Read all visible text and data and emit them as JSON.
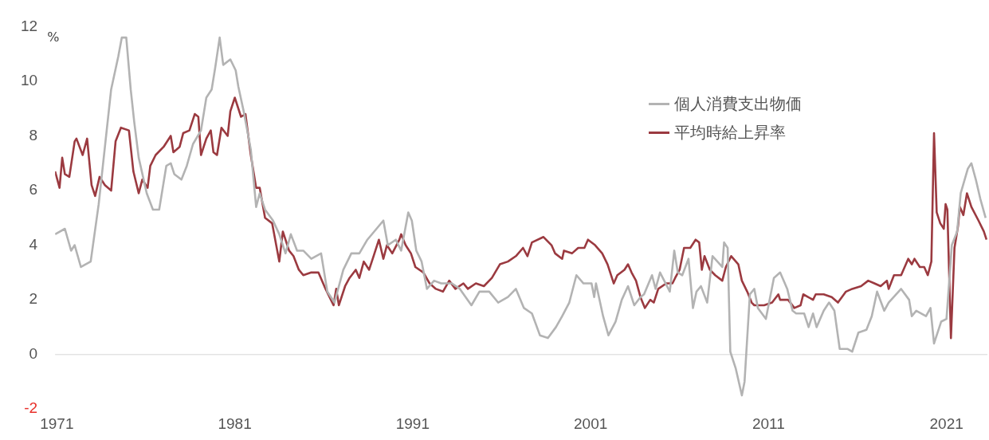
{
  "chart_data": {
    "type": "line",
    "ylabel": "%",
    "xlim": [
      1970.9,
      2023.3
    ],
    "xticks": [
      1971,
      1981,
      1991,
      2001,
      2011,
      2021
    ],
    "ylim": [
      -2,
      12
    ],
    "yticks": [
      -2,
      0,
      2,
      4,
      6,
      8,
      10,
      12
    ],
    "legend": "top right",
    "marker": "none",
    "line_style": "solid",
    "ref_lines": [
      {
        "axis": "y",
        "value": 0,
        "color": "#e3e3e3"
      }
    ],
    "series": [
      {
        "name": "個人消費支出物価",
        "color": "#b3b3b3",
        "x": [
          1970.9,
          1971.45,
          1971.8,
          1972.0,
          1972.35,
          1972.9,
          1973.35,
          1974.05,
          1974.45,
          1974.65,
          1974.9,
          1975.15,
          1975.35,
          1975.6,
          1976.05,
          1976.4,
          1976.75,
          1977.15,
          1977.4,
          1977.6,
          1978.0,
          1978.3,
          1978.65,
          1979.1,
          1979.4,
          1979.7,
          1979.9,
          1980.15,
          1980.35,
          1980.75,
          1981.05,
          1981.2,
          1981.5,
          1981.9,
          1982.2,
          1982.4,
          1982.7,
          1983.15,
          1983.5,
          1983.85,
          1984.15,
          1984.5,
          1984.85,
          1985.3,
          1985.85,
          1986.2,
          1986.6,
          1987.1,
          1987.55,
          1988.0,
          1988.45,
          1989.35,
          1989.6,
          1990.05,
          1990.35,
          1990.75,
          1990.95,
          1991.2,
          1991.5,
          1991.8,
          1992.2,
          1992.6,
          1993.2,
          1993.65,
          1994.3,
          1994.75,
          1995.3,
          1995.8,
          1996.35,
          1996.8,
          1997.25,
          1997.7,
          1998.15,
          1998.6,
          1999.05,
          1999.4,
          1999.8,
          2000.2,
          2000.6,
          2001.05,
          2001.2,
          2001.3,
          2001.7,
          2002.0,
          2002.4,
          2002.75,
          2003.1,
          2003.45,
          2003.8,
          2004.0,
          2004.45,
          2004.65,
          2004.9,
          2005.45,
          2005.7,
          2005.9,
          2006.15,
          2006.5,
          2006.75,
          2006.95,
          2007.2,
          2007.55,
          2007.85,
          2008.4,
          2008.5,
          2008.7,
          2008.85,
          2009.15,
          2009.5,
          2009.65,
          2009.95,
          2010.2,
          2010.4,
          2010.85,
          2011.3,
          2011.65,
          2012.05,
          2012.35,
          2012.55,
          2013.0,
          2013.25,
          2013.5,
          2013.7,
          2014.1,
          2014.4,
          2014.7,
          2015.0,
          2015.45,
          2015.7,
          2016.05,
          2016.5,
          2016.8,
          2017.1,
          2017.5,
          2017.75,
          2018.45,
          2018.9,
          2019.05,
          2019.3,
          2019.85,
          2020.1,
          2020.3,
          2020.7,
          2021.0,
          2021.3,
          2021.6,
          2021.8,
          2022.2,
          2022.4,
          2022.65,
          2022.9,
          2023.2
        ],
        "values": [
          4.4,
          4.6,
          3.8,
          4.0,
          3.2,
          3.4,
          5.5,
          9.7,
          10.9,
          11.6,
          11.6,
          9.7,
          8.5,
          7.2,
          5.9,
          5.3,
          5.3,
          6.9,
          7.0,
          6.6,
          6.4,
          6.9,
          7.7,
          8.2,
          9.4,
          9.7,
          10.5,
          11.6,
          10.6,
          10.8,
          10.4,
          9.8,
          8.9,
          7.5,
          5.4,
          5.9,
          5.3,
          4.9,
          4.4,
          3.7,
          4.4,
          3.8,
          3.8,
          3.5,
          3.7,
          2.3,
          1.9,
          3.1,
          3.7,
          3.7,
          4.2,
          4.9,
          4.0,
          4.2,
          3.8,
          5.2,
          4.9,
          3.8,
          3.4,
          2.4,
          2.7,
          2.6,
          2.6,
          2.4,
          1.8,
          2.3,
          2.3,
          1.9,
          2.1,
          2.4,
          1.7,
          1.5,
          0.7,
          0.6,
          1.0,
          1.4,
          1.9,
          2.9,
          2.6,
          2.6,
          2.1,
          2.6,
          1.4,
          0.7,
          1.2,
          2.0,
          2.5,
          1.8,
          2.1,
          2.2,
          2.9,
          2.4,
          3.0,
          2.3,
          3.8,
          3.0,
          2.9,
          3.5,
          1.7,
          2.3,
          2.5,
          1.9,
          3.6,
          3.2,
          4.1,
          3.9,
          0.1,
          -0.5,
          -1.5,
          -1.0,
          2.2,
          2.4,
          1.7,
          1.3,
          2.8,
          3.0,
          2.4,
          1.6,
          1.5,
          1.5,
          1.0,
          1.5,
          1.0,
          1.6,
          1.9,
          1.6,
          0.2,
          0.2,
          0.1,
          0.8,
          0.9,
          1.4,
          2.3,
          1.6,
          1.9,
          2.4,
          2.0,
          1.4,
          1.6,
          1.4,
          1.7,
          0.4,
          1.2,
          1.3,
          4.0,
          4.5,
          5.9,
          6.8,
          7.0,
          6.4,
          5.7,
          5.0
        ]
      },
      {
        "name": "平均時給上昇率",
        "color": "#9b3a40",
        "x": [
          1970.9,
          1971.15,
          1971.3,
          1971.45,
          1971.7,
          1972.0,
          1972.1,
          1972.45,
          1972.7,
          1972.95,
          1973.15,
          1973.4,
          1973.7,
          1974.05,
          1974.3,
          1974.6,
          1975.05,
          1975.3,
          1975.6,
          1975.8,
          1976.1,
          1976.25,
          1976.55,
          1977.0,
          1977.4,
          1977.55,
          1977.9,
          1978.1,
          1978.45,
          1978.75,
          1978.95,
          1979.1,
          1979.4,
          1979.65,
          1979.8,
          1980.0,
          1980.25,
          1980.6,
          1980.75,
          1981.0,
          1981.35,
          1981.6,
          1981.9,
          1982.2,
          1982.4,
          1982.7,
          1983.1,
          1983.5,
          1983.7,
          1984.05,
          1984.3,
          1984.6,
          1984.85,
          1985.3,
          1985.7,
          1986.1,
          1986.55,
          1986.7,
          1986.85,
          1987.2,
          1987.45,
          1987.8,
          1988.0,
          1988.25,
          1988.55,
          1988.8,
          1989.1,
          1989.35,
          1989.55,
          1989.85,
          1990.25,
          1990.35,
          1990.6,
          1990.9,
          1991.15,
          1991.6,
          1991.95,
          1992.3,
          1992.7,
          1993.05,
          1993.4,
          1993.85,
          1994.1,
          1994.55,
          1995.0,
          1995.45,
          1995.9,
          1996.35,
          1996.8,
          1997.2,
          1997.45,
          1997.7,
          1998.35,
          1998.8,
          1999.0,
          1999.4,
          1999.5,
          1999.95,
          2000.3,
          2000.65,
          2000.85,
          2001.25,
          2001.65,
          2001.95,
          2002.3,
          2002.5,
          2002.9,
          2003.1,
          2003.3,
          2003.55,
          2003.8,
          2004.05,
          2004.35,
          2004.55,
          2004.8,
          2005.25,
          2005.6,
          2005.75,
          2006.0,
          2006.25,
          2006.6,
          2006.9,
          2007.1,
          2007.25,
          2007.4,
          2007.7,
          2008.0,
          2008.4,
          2008.6,
          2008.9,
          2009.3,
          2009.5,
          2009.8,
          2010.05,
          2010.2,
          2010.75,
          2011.2,
          2011.55,
          2011.65,
          2012.1,
          2012.45,
          2012.8,
          2012.95,
          2013.5,
          2013.65,
          2014.1,
          2014.55,
          2014.9,
          2015.35,
          2015.7,
          2016.2,
          2016.6,
          2016.95,
          2017.3,
          2017.65,
          2017.75,
          2018.05,
          2018.45,
          2018.85,
          2019.05,
          2019.2,
          2019.5,
          2019.75,
          2019.95,
          2020.15,
          2020.3,
          2020.45,
          2020.65,
          2020.85,
          2020.95,
          2021.05,
          2021.25,
          2021.45,
          2021.65,
          2021.75,
          2021.95,
          2022.15,
          2022.4,
          2022.8,
          2023.1,
          2023.25
        ],
        "values": [
          6.7,
          6.1,
          7.2,
          6.6,
          6.5,
          7.8,
          7.9,
          7.3,
          7.9,
          6.2,
          5.8,
          6.5,
          6.2,
          6.0,
          7.8,
          8.3,
          8.2,
          6.7,
          5.9,
          6.4,
          6.1,
          6.9,
          7.3,
          7.6,
          8.0,
          7.4,
          7.6,
          8.1,
          8.2,
          8.8,
          8.7,
          7.3,
          7.9,
          8.2,
          7.4,
          7.3,
          8.3,
          8.0,
          8.9,
          9.4,
          8.7,
          8.8,
          7.3,
          6.1,
          6.1,
          5.0,
          4.8,
          3.4,
          4.5,
          3.8,
          3.6,
          3.1,
          2.9,
          3.0,
          3.0,
          2.4,
          1.8,
          2.4,
          1.8,
          2.5,
          2.8,
          3.1,
          2.8,
          3.4,
          3.1,
          3.6,
          4.2,
          3.5,
          4.0,
          3.7,
          4.2,
          4.4,
          4.0,
          3.7,
          3.2,
          3.0,
          2.6,
          2.4,
          2.3,
          2.7,
          2.4,
          2.6,
          2.4,
          2.6,
          2.5,
          2.8,
          3.3,
          3.4,
          3.6,
          3.9,
          3.6,
          4.1,
          4.3,
          4.0,
          3.7,
          3.5,
          3.8,
          3.7,
          3.9,
          3.9,
          4.2,
          4.0,
          3.7,
          3.3,
          2.6,
          2.9,
          3.1,
          3.3,
          3.0,
          2.7,
          2.1,
          1.7,
          2.0,
          1.9,
          2.4,
          2.6,
          2.6,
          2.8,
          3.1,
          3.9,
          3.9,
          4.2,
          4.1,
          3.1,
          3.6,
          3.1,
          2.9,
          2.7,
          3.2,
          3.6,
          3.3,
          2.7,
          2.3,
          1.9,
          1.8,
          1.8,
          1.9,
          2.2,
          2.0,
          2.0,
          1.7,
          1.8,
          2.2,
          2.0,
          2.2,
          2.2,
          2.1,
          1.9,
          2.3,
          2.4,
          2.5,
          2.7,
          2.6,
          2.5,
          2.7,
          2.4,
          2.9,
          2.9,
          3.5,
          3.3,
          3.5,
          3.2,
          3.2,
          2.9,
          3.4,
          8.1,
          5.2,
          4.8,
          4.6,
          5.5,
          5.3,
          0.6,
          3.9,
          4.7,
          5.4,
          5.1,
          5.9,
          5.4,
          4.9,
          4.5,
          4.2
        ]
      }
    ]
  }
}
